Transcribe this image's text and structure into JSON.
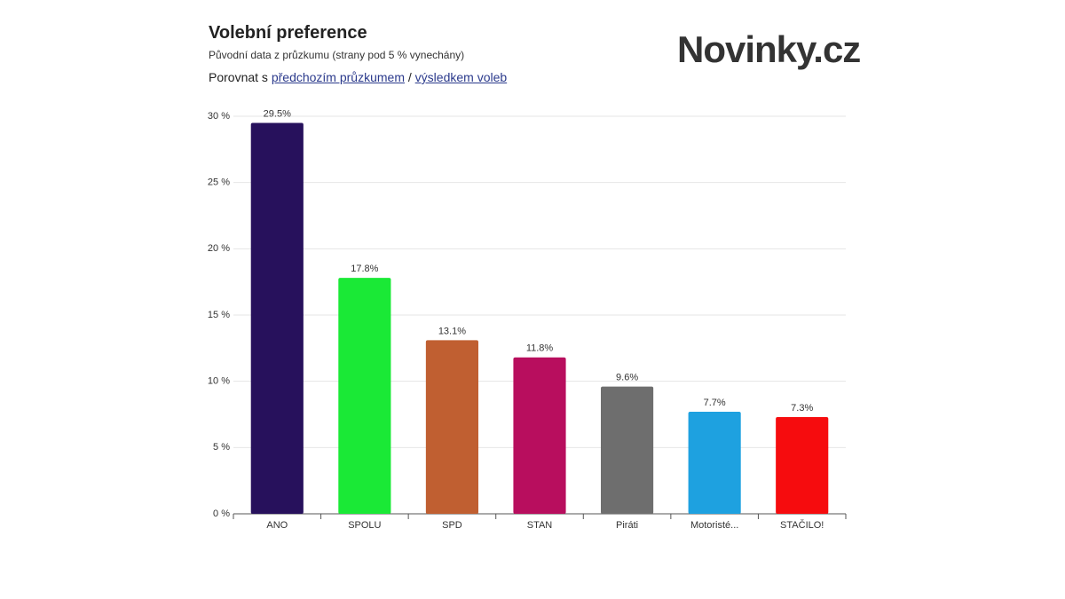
{
  "header": {
    "title": "Volební preference",
    "subtitle": "Původní data z průzkumu (strany pod 5 % vynechány)",
    "compare_prefix": "Porovnat s",
    "compare_link_1": "předchozím průzkumem",
    "compare_separator": "/",
    "compare_link_2": "výsledkem voleb",
    "logo": "Novinky.cz"
  },
  "chart_data": {
    "type": "bar",
    "categories": [
      "ANO",
      "SPOLU",
      "SPD",
      "STAN",
      "Piráti",
      "Motoristé...",
      "STAČILO!"
    ],
    "values": [
      29.5,
      17.8,
      13.1,
      11.8,
      9.6,
      7.7,
      7.3
    ],
    "value_labels": [
      "29.5%",
      "17.8%",
      "13.1%",
      "11.8%",
      "9.6%",
      "7.7%",
      "7.3%"
    ],
    "colors": [
      "#27115c",
      "#1ae936",
      "#c05f31",
      "#b80e5e",
      "#6e6e6e",
      "#1ea1e0",
      "#f60c0e"
    ],
    "ylim": [
      0,
      30
    ],
    "yticks": [
      {
        "value": 0,
        "label": "0 %"
      },
      {
        "value": 5,
        "label": "5 %"
      },
      {
        "value": 10,
        "label": "10 %"
      },
      {
        "value": 15,
        "label": "15 %"
      },
      {
        "value": 20,
        "label": "20 %"
      },
      {
        "value": 25,
        "label": "25 %"
      },
      {
        "value": 30,
        "label": "30 %"
      }
    ],
    "grid": true
  }
}
